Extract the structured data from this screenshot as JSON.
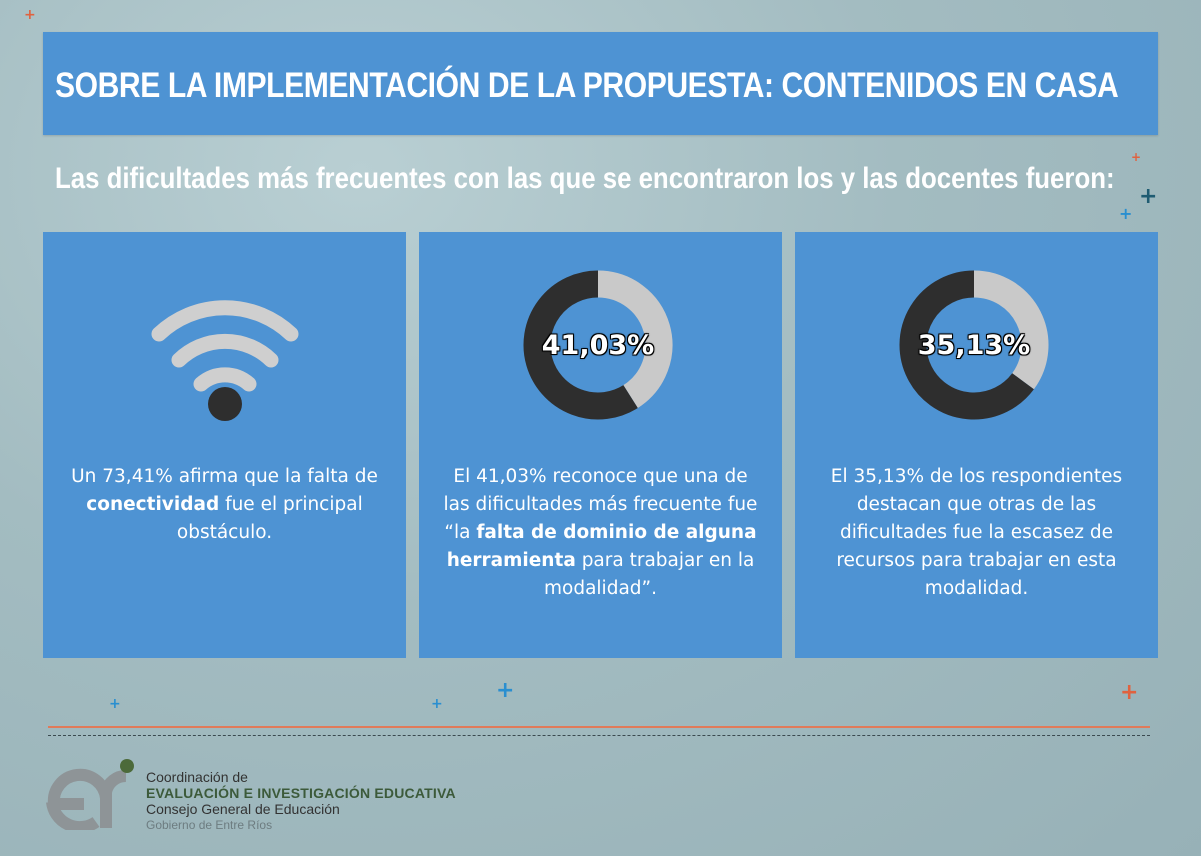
{
  "header": {
    "title": "SOBRE LA IMPLEMENTACIÓN DE LA PROPUESTA: CONTENIDOS EN CASA",
    "subtitle": "Las dificultades más frecuentes con las que se encontraron los y las docentes fueron:"
  },
  "cards": [
    {
      "icon": "wifi-icon",
      "text_pre": "Un 73,41% afirma que la falta de ",
      "text_bold": "conectividad",
      "text_post": " fue el principal obstáculo."
    },
    {
      "icon": "donut-chart",
      "text_pre": "El 41,03% reconoce que una de las dificultades más frecuente fue “la ",
      "text_bold": "falta de dominio de alguna herramienta",
      "text_post": " para trabajar en la modalidad”."
    },
    {
      "icon": "donut-chart",
      "text_pre": "El 35,13% de los respondientes destacan que otras de las dificultades fue la escasez de recursos para trabajar en esta modalidad.",
      "text_bold": "",
      "text_post": ""
    }
  ],
  "chart_data": [
    {
      "type": "pie",
      "title": "",
      "center_label": "41,03%",
      "values": [
        41.03,
        58.97
      ],
      "colors": [
        "#c9c9c9",
        "#2e2e2e"
      ]
    },
    {
      "type": "pie",
      "title": "",
      "center_label": "35,13%",
      "values": [
        35.13,
        64.87
      ],
      "colors": [
        "#c9c9c9",
        "#2e2e2e"
      ]
    }
  ],
  "footer": {
    "logo_line1": "Coordinación de",
    "logo_line2": "EVALUACIÓN E INVESTIGACIÓN EDUCATIVA",
    "logo_line3": "Consejo General de Educación",
    "logo_line4": "Gobierno de Entre Ríos"
  },
  "colors": {
    "card_blue": "#4e93d3",
    "donut_dark": "#2e2e2e",
    "donut_light": "#c9c9c9",
    "rule_orange": "#e07a5a"
  }
}
